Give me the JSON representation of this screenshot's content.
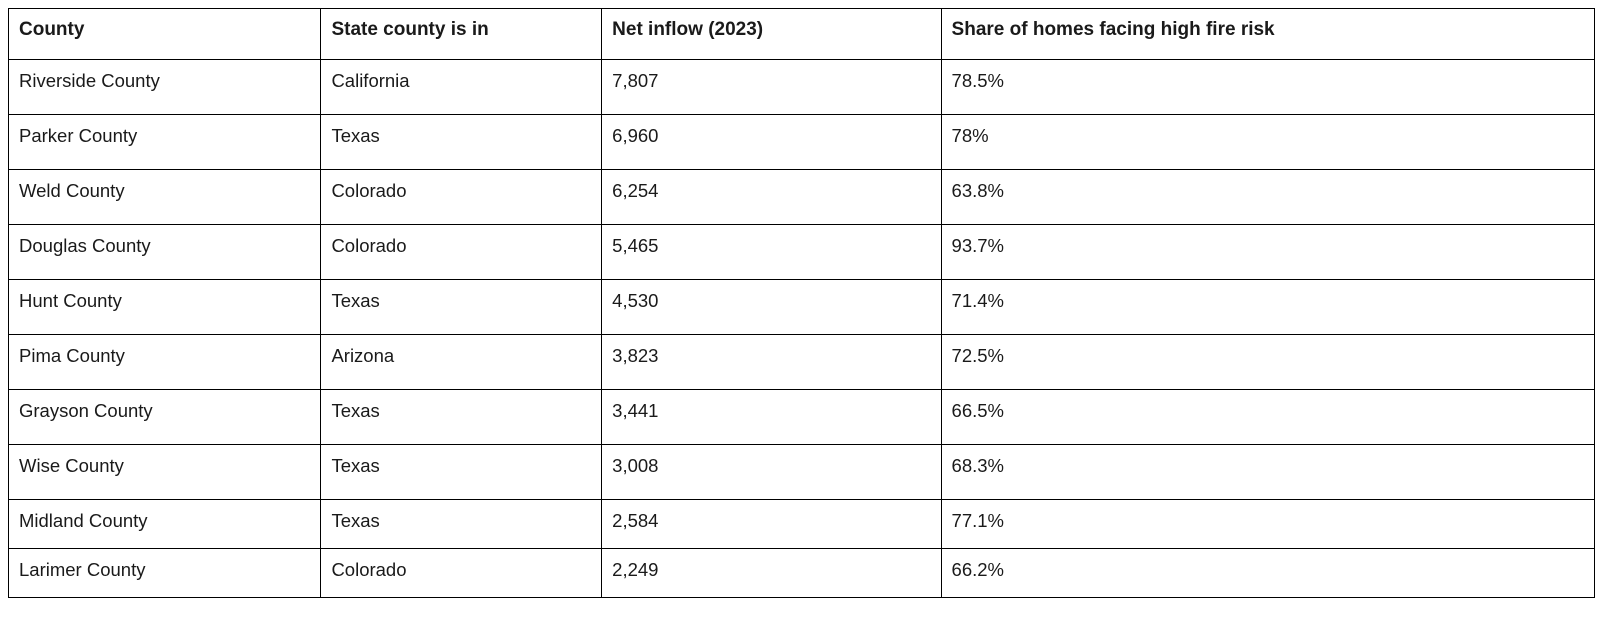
{
  "table": {
    "type": "table",
    "background_color": "#ffffff",
    "border_color": "#000000",
    "text_color": "#1a1a1a",
    "font_family": "Arial",
    "header_font_size_pt": 14,
    "cell_font_size_pt": 14,
    "header_font_weight": 700,
    "cell_font_weight": 400,
    "column_widths_pct": [
      19.7,
      17.7,
      21.4,
      41.2
    ],
    "columns": [
      "County",
      "State county is in",
      "Net inflow (2023)",
      "Share of homes facing high fire risk"
    ],
    "rows": [
      [
        "Riverside County",
        "California",
        "7,807",
        "78.5%"
      ],
      [
        "Parker County",
        "Texas",
        "6,960",
        "78%"
      ],
      [
        "Weld County",
        "Colorado",
        "6,254",
        "63.8%"
      ],
      [
        "Douglas County",
        "Colorado",
        "5,465",
        "93.7%"
      ],
      [
        "Hunt County",
        "Texas",
        "4,530",
        "71.4%"
      ],
      [
        "Pima County",
        "Arizona",
        "3,823",
        "72.5%"
      ],
      [
        "Grayson County",
        "Texas",
        "3,441",
        "66.5%"
      ],
      [
        "Wise County",
        "Texas",
        "3,008",
        "68.3%"
      ],
      [
        "Midland County",
        "Texas",
        "2,584",
        "77.1%"
      ],
      [
        "Larimer County",
        "Colorado",
        "2,249",
        "66.2%"
      ]
    ]
  }
}
